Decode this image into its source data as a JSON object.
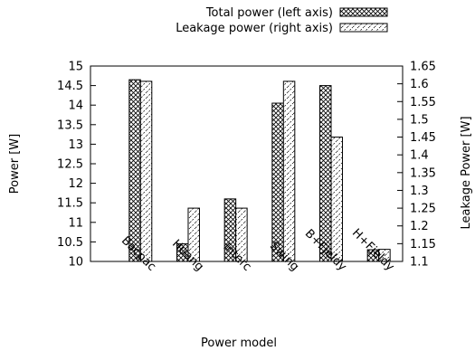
{
  "chart_data": {
    "type": "bar",
    "xlabel": "Power model",
    "ylabel_left": "Power [W]",
    "ylabel_right": "Leakage Power [W]",
    "categories": [
      "Bacpac",
      "Huang",
      "Interc",
      "Swing",
      "B+Fjeldy",
      "H+Fjeldy"
    ],
    "series": [
      {
        "name": "Total power (left axis)",
        "axis": "left",
        "pattern": "crosshatch",
        "values": [
          14.65,
          10.45,
          11.6,
          14.05,
          14.5,
          10.3
        ]
      },
      {
        "name": "Leakage power (right axis)",
        "axis": "right",
        "pattern": "diagonal-dash",
        "values": [
          1.607,
          1.25,
          1.25,
          1.607,
          1.45,
          1.134
        ]
      }
    ],
    "ylim_left": [
      10,
      15
    ],
    "ylim_right": [
      1.1,
      1.65
    ],
    "yticks_left": [
      "10",
      "10.5",
      "11",
      "11.5",
      "12",
      "12.5",
      "13",
      "13.5",
      "14",
      "14.5",
      "15"
    ],
    "yticks_right": [
      "1.1",
      "1.15",
      "1.2",
      "1.25",
      "1.3",
      "1.35",
      "1.4",
      "1.45",
      "1.5",
      "1.55",
      "1.6",
      "1.65"
    ],
    "legend_position": "top-right",
    "grid": false
  }
}
